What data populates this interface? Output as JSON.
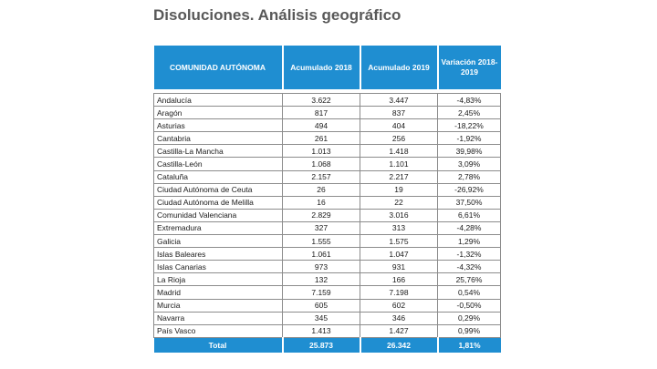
{
  "title": "Disoluciones. Análisis geográfico",
  "table": {
    "headers": [
      "COMUNIDAD AUTÓNOMA",
      "Acumulado 2018",
      "Acumulado 2019",
      "Variación 2018-2019"
    ],
    "rows": [
      [
        "Andalucía",
        "3.622",
        "3.447",
        "-4,83%"
      ],
      [
        "Aragón",
        "817",
        "837",
        "2,45%"
      ],
      [
        "Asturias",
        "494",
        "404",
        "-18,22%"
      ],
      [
        "Cantabria",
        "261",
        "256",
        "-1,92%"
      ],
      [
        "Castilla-La Mancha",
        "1.013",
        "1.418",
        "39,98%"
      ],
      [
        "Castilla-León",
        "1.068",
        "1.101",
        "3,09%"
      ],
      [
        "Cataluña",
        "2.157",
        "2.217",
        "2,78%"
      ],
      [
        "Ciudad Autónoma de Ceuta",
        "26",
        "19",
        "-26,92%"
      ],
      [
        "Ciudad Autónoma de Melilla",
        "16",
        "22",
        "37,50%"
      ],
      [
        "Comunidad Valenciana",
        "2.829",
        "3.016",
        "6,61%"
      ],
      [
        "Extremadura",
        "327",
        "313",
        "-4,28%"
      ],
      [
        "Galicia",
        "1.555",
        "1.575",
        "1,29%"
      ],
      [
        "Islas Baleares",
        "1.061",
        "1.047",
        "-1,32%"
      ],
      [
        "Islas Canarias",
        "973",
        "931",
        "-4,32%"
      ],
      [
        "La Rioja",
        "132",
        "166",
        "25,76%"
      ],
      [
        "Madrid",
        "7.159",
        "7.198",
        "0,54%"
      ],
      [
        "Murcia",
        "605",
        "602",
        "-0,50%"
      ],
      [
        "Navarra",
        "345",
        "346",
        "0,29%"
      ],
      [
        "País Vasco",
        "1.413",
        "1.427",
        "0,99%"
      ]
    ],
    "total": [
      "Total",
      "25.873",
      "26.342",
      "1,81%"
    ]
  },
  "colors": {
    "header_bg": "#1f8ed1",
    "header_text": "#ffffff",
    "title": "#595959"
  }
}
